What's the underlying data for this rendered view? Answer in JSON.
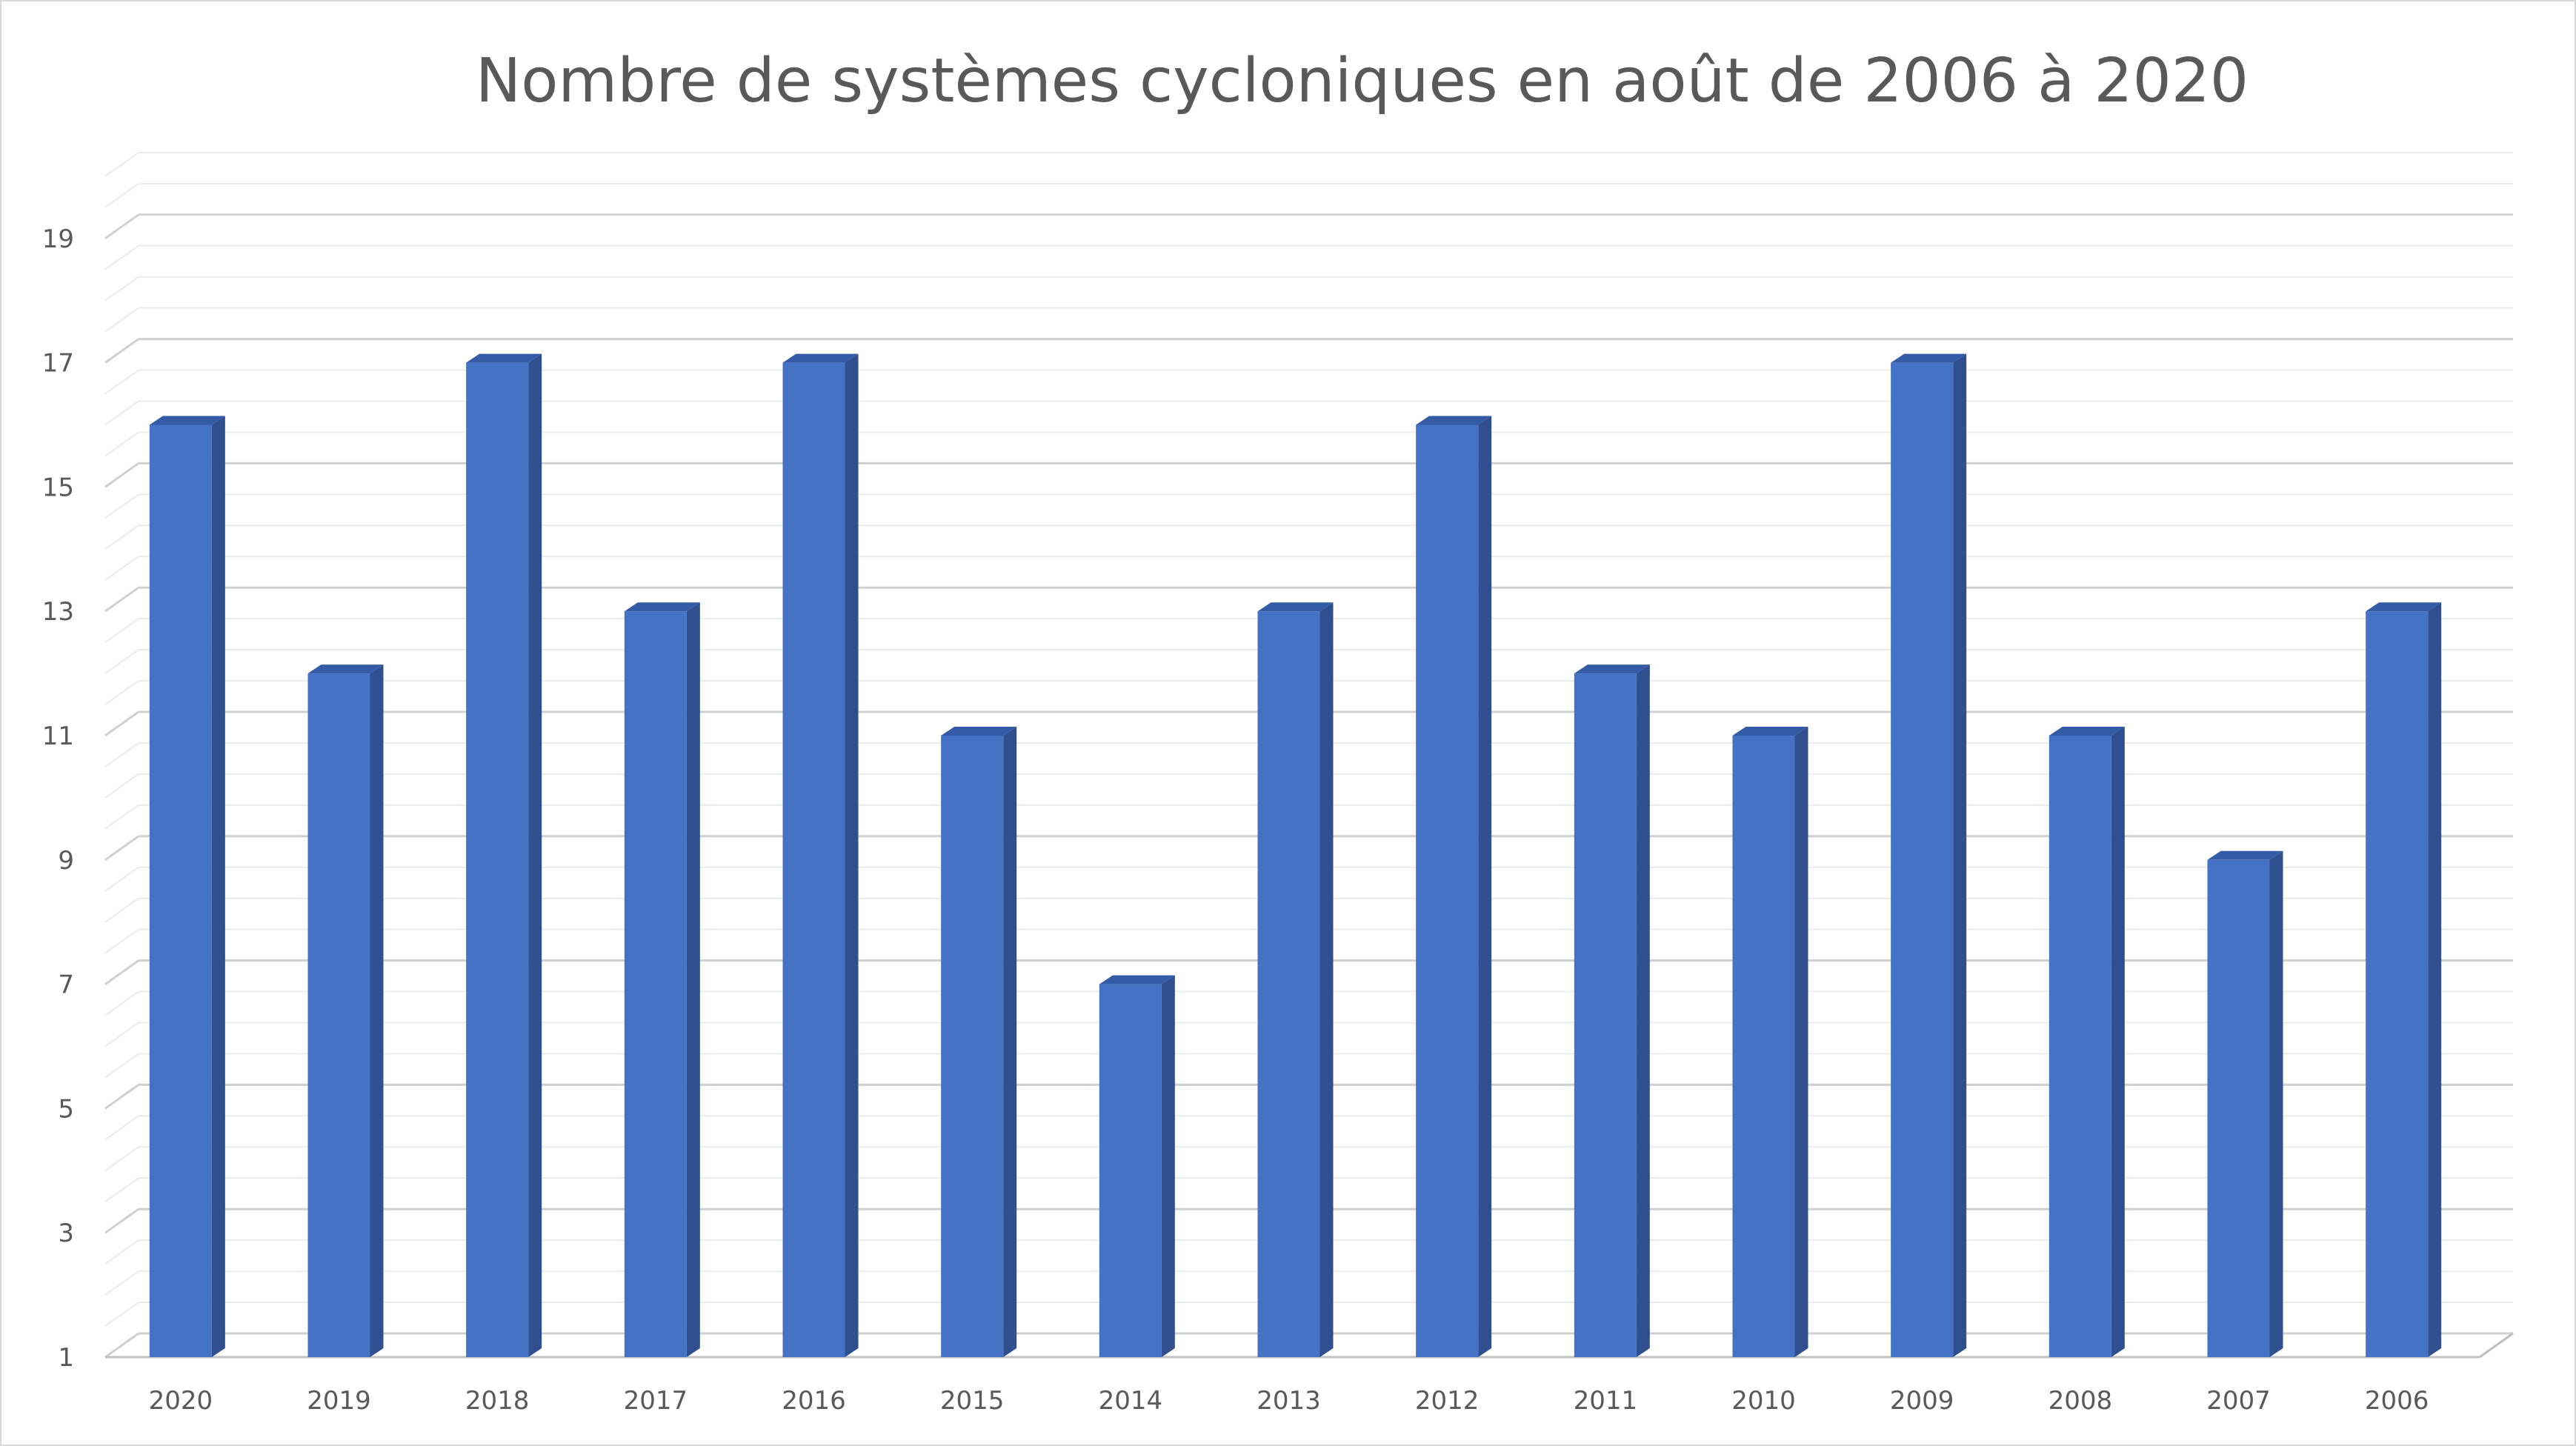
{
  "chart_data": {
    "type": "bar",
    "title": "Nombre de systèmes cycloniques en août de 2006 à 2020",
    "xlabel": "",
    "ylabel": "",
    "categories": [
      "2020",
      "2019",
      "2018",
      "2017",
      "2016",
      "2015",
      "2014",
      "2013",
      "2012",
      "2011",
      "2010",
      "2009",
      "2008",
      "2007",
      "2006"
    ],
    "values": [
      16,
      12,
      17,
      13,
      17,
      11,
      7,
      13,
      16,
      12,
      11,
      17,
      11,
      9,
      13
    ],
    "ylim": [
      1,
      20
    ],
    "yticks": [
      "1",
      "3",
      "5",
      "7",
      "9",
      "11",
      "13",
      "15",
      "17",
      "19"
    ],
    "grid": true,
    "legend": "none",
    "colors": {
      "bar_front": "#4472C4",
      "bar_side": "#2F4F8F",
      "bar_top": "#345BA6",
      "grid": "#d9d9d9",
      "text": "#595959"
    }
  }
}
